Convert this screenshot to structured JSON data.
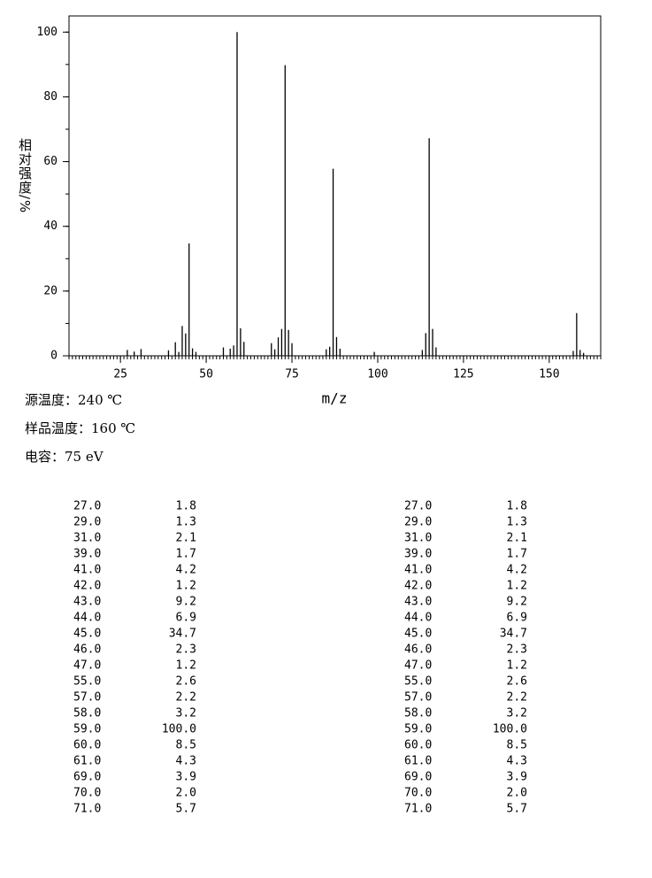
{
  "chart_data": {
    "type": "bar",
    "y_label": "相对强度/%",
    "x_label": "m/z",
    "x": [
      27,
      29,
      31,
      39,
      41,
      42,
      43,
      44,
      45,
      46,
      47,
      55,
      57,
      58,
      59,
      60,
      61,
      69,
      70,
      71,
      72,
      73,
      74,
      75,
      85,
      86,
      87,
      88,
      89,
      99,
      113,
      114,
      115,
      116,
      117,
      157,
      158,
      159,
      160
    ],
    "values": [
      1.8,
      1.3,
      2.1,
      1.7,
      4.2,
      1.2,
      9.2,
      6.9,
      34.7,
      2.3,
      1.2,
      2.6,
      2.2,
      3.2,
      100,
      8.5,
      4.3,
      3.9,
      2.0,
      5.7,
      8.3,
      89.8,
      8.0,
      3.9,
      2.0,
      2.8,
      57.8,
      5.8,
      2.2,
      1.2,
      1.8,
      7.0,
      67.2,
      8.3,
      2.6,
      1.5,
      13.2,
      1.8,
      0.9
    ],
    "color": "#000000",
    "xlim": [
      10,
      165
    ],
    "xticks": [
      25,
      50,
      75,
      100,
      125,
      150
    ],
    "ylim": [
      0,
      105
    ],
    "yticks": [
      0,
      20,
      40,
      60,
      80,
      100
    ],
    "minor_tick_step": {
      "x": 1,
      "y": 10
    }
  },
  "conditions": [
    "源温度：240 ℃",
    "样品温度：160 ℃",
    "电容：75 eV"
  ],
  "peak_table": {
    "left": [
      [
        "27.0",
        "1.8"
      ],
      [
        "29.0",
        "1.3"
      ],
      [
        "31.0",
        "2.1"
      ],
      [
        "39.0",
        "1.7"
      ],
      [
        "41.0",
        "4.2"
      ],
      [
        "42.0",
        "1.2"
      ],
      [
        "43.0",
        "9.2"
      ],
      [
        "44.0",
        "6.9"
      ],
      [
        "45.0",
        "34.7"
      ],
      [
        "46.0",
        "2.3"
      ],
      [
        "47.0",
        "1.2"
      ],
      [
        "55.0",
        "2.6"
      ],
      [
        "57.0",
        "2.2"
      ],
      [
        "58.0",
        "3.2"
      ],
      [
        "59.0",
        "100.0"
      ],
      [
        "60.0",
        "8.5"
      ],
      [
        "61.0",
        "4.3"
      ],
      [
        "69.0",
        "3.9"
      ],
      [
        "70.0",
        "2.0"
      ],
      [
        "71.0",
        "5.7"
      ]
    ],
    "right": [
      [
        "27.0",
        "1.8"
      ],
      [
        "29.0",
        "1.3"
      ],
      [
        "31.0",
        "2.1"
      ],
      [
        "39.0",
        "1.7"
      ],
      [
        "41.0",
        "4.2"
      ],
      [
        "42.0",
        "1.2"
      ],
      [
        "43.0",
        "9.2"
      ],
      [
        "44.0",
        "6.9"
      ],
      [
        "45.0",
        "34.7"
      ],
      [
        "46.0",
        "2.3"
      ],
      [
        "47.0",
        "1.2"
      ],
      [
        "55.0",
        "2.6"
      ],
      [
        "57.0",
        "2.2"
      ],
      [
        "58.0",
        "3.2"
      ],
      [
        "59.0",
        "100.0"
      ],
      [
        "60.0",
        "8.5"
      ],
      [
        "61.0",
        "4.3"
      ],
      [
        "69.0",
        "3.9"
      ],
      [
        "70.0",
        "2.0"
      ],
      [
        "71.0",
        "5.7"
      ]
    ]
  }
}
